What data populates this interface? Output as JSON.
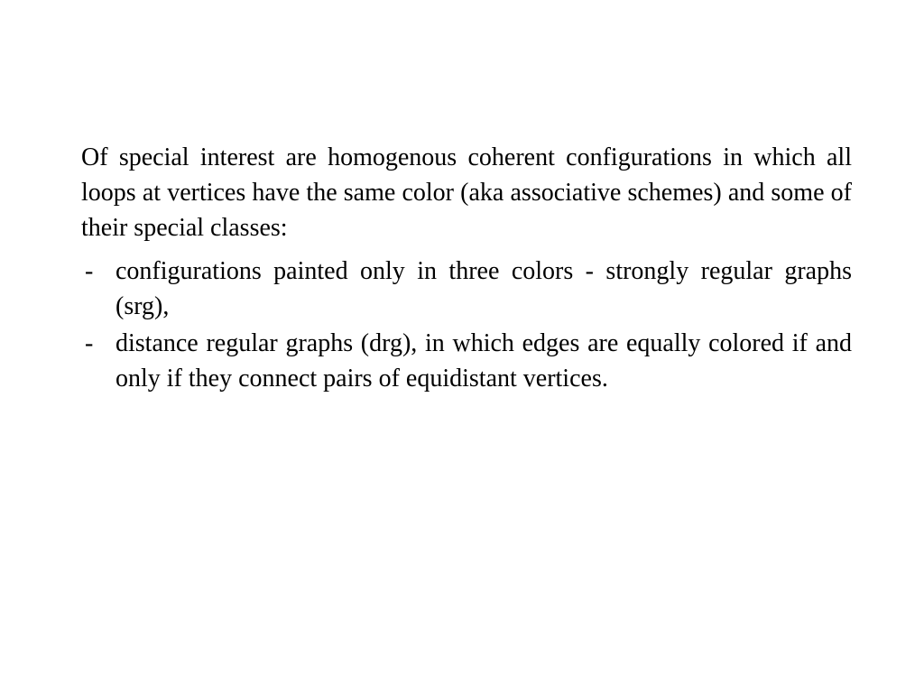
{
  "slide": {
    "intro": "Of special interest are homogenous  coherent configurations in which all loops at vertices have the same color (aka associative schemes) and some of their special classes:",
    "bullets": [
      "configurations painted only in three colors - strongly regular graphs (srg),",
      "distance regular graphs (drg), in which edges are equally colored if and only if  they connect pairs of equidistant vertices."
    ]
  },
  "style": {
    "background_color": "#ffffff",
    "text_color": "#000000",
    "font_family": "Times New Roman",
    "font_size_pt": 28,
    "line_height": 1.4,
    "text_align": "justify"
  }
}
